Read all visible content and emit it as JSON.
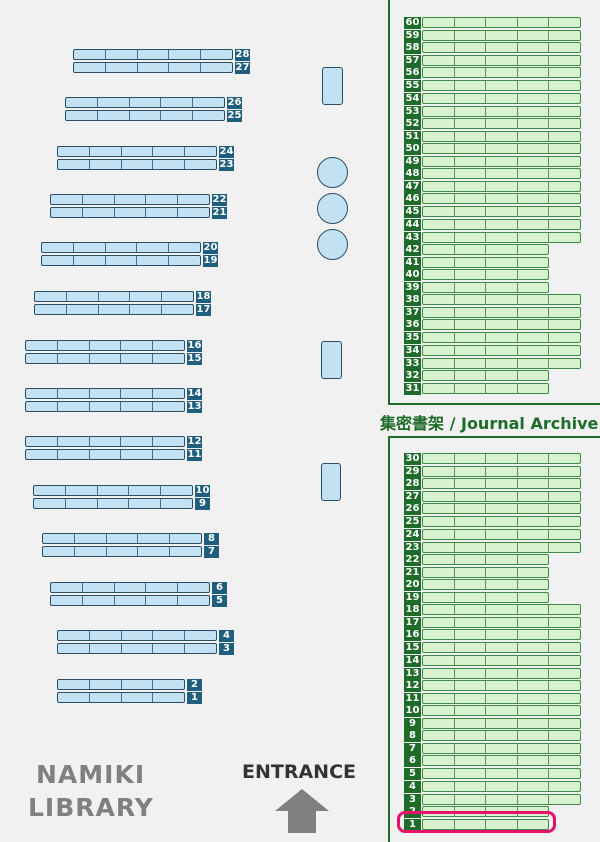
{
  "library_name": [
    "NAMIKI",
    "LIBRARY"
  ],
  "entrance_label": "ENTRANCE",
  "entrance_icon": "arrow-up-icon",
  "journal_area_label": "集密書架 / Journal Archive",
  "colors": {
    "general_shelf": "#c2e2f4",
    "general_label": "#1f5f7d",
    "journal_shelf": "#d8f2d0",
    "journal_label": "#1e6b2a",
    "highlight": "#e8106a"
  },
  "general_shelves": [
    {
      "numbers": [
        "28",
        "27"
      ],
      "segments": 5
    },
    {
      "numbers": [
        "26",
        "25"
      ],
      "segments": 5
    },
    {
      "numbers": [
        "24",
        "23"
      ],
      "segments": 5
    },
    {
      "numbers": [
        "22",
        "21"
      ],
      "segments": 5
    },
    {
      "numbers": [
        "20",
        "19"
      ],
      "segments": 5
    },
    {
      "numbers": [
        "18",
        "17"
      ],
      "segments": 5
    },
    {
      "numbers": [
        "16",
        "15"
      ],
      "segments": 5
    },
    {
      "numbers": [
        "14",
        "13"
      ],
      "segments": 5
    },
    {
      "numbers": [
        "12",
        "11"
      ],
      "segments": 5
    },
    {
      "numbers": [
        "10",
        "9"
      ],
      "segments": 5
    },
    {
      "numbers": [
        "8",
        "7"
      ],
      "segments": 5
    },
    {
      "numbers": [
        "6",
        "5"
      ],
      "segments": 5
    },
    {
      "numbers": [
        "4",
        "3"
      ],
      "segments": 5
    },
    {
      "numbers": [
        "2",
        "1"
      ],
      "segments": 4
    }
  ],
  "journal_upper": [
    {
      "numbers": [
        "60",
        "59"
      ],
      "segments": 5
    },
    {
      "numbers": [
        "58",
        "57"
      ],
      "segments": 5
    },
    {
      "numbers": [
        "56",
        "55"
      ],
      "segments": 5
    },
    {
      "numbers": [
        "54",
        "53"
      ],
      "segments": 5
    },
    {
      "numbers": [
        "52",
        "51"
      ],
      "segments": 5
    },
    {
      "numbers": [
        "50",
        "49"
      ],
      "segments": 5
    },
    {
      "numbers": [
        "48",
        "47"
      ],
      "segments": 5
    },
    {
      "numbers": [
        "46",
        "45"
      ],
      "segments": 5
    },
    {
      "numbers": [
        "44",
        "43"
      ],
      "segments": 5
    },
    {
      "numbers": [
        "42",
        "41"
      ],
      "segments": 4
    },
    {
      "numbers": [
        "40",
        "39"
      ],
      "segments": 4
    },
    {
      "numbers": [
        "38",
        "37"
      ],
      "segments": 5
    },
    {
      "numbers": [
        "36",
        "35"
      ],
      "segments": 5
    },
    {
      "numbers": [
        "34",
        "33"
      ],
      "segments": 5
    },
    {
      "numbers": [
        "32",
        "31"
      ],
      "segments": 4
    }
  ],
  "journal_lower": [
    {
      "numbers": [
        "30",
        "29"
      ],
      "segments": 5
    },
    {
      "numbers": [
        "28",
        "27"
      ],
      "segments": 5
    },
    {
      "numbers": [
        "26",
        "25"
      ],
      "segments": 5
    },
    {
      "numbers": [
        "24",
        "23"
      ],
      "segments": 5
    },
    {
      "numbers": [
        "22",
        "21"
      ],
      "segments": 4
    },
    {
      "numbers": [
        "20",
        "19"
      ],
      "segments": 4
    },
    {
      "numbers": [
        "18",
        "17"
      ],
      "segments": 5
    },
    {
      "numbers": [
        "16",
        "15"
      ],
      "segments": 5
    },
    {
      "numbers": [
        "14",
        "13"
      ],
      "segments": 5
    },
    {
      "numbers": [
        "12",
        "11"
      ],
      "segments": 5
    },
    {
      "numbers": [
        "10",
        "9"
      ],
      "segments": 5
    },
    {
      "numbers": [
        "8",
        "7"
      ],
      "segments": 5
    },
    {
      "numbers": [
        "6",
        "5"
      ],
      "segments": 5
    },
    {
      "numbers": [
        "4",
        "3"
      ],
      "segments": 5
    },
    {
      "numbers": [
        "2",
        "1"
      ],
      "segments": 4
    }
  ],
  "highlighted_shelf": {
    "area": "journal_lower",
    "number": "1"
  }
}
